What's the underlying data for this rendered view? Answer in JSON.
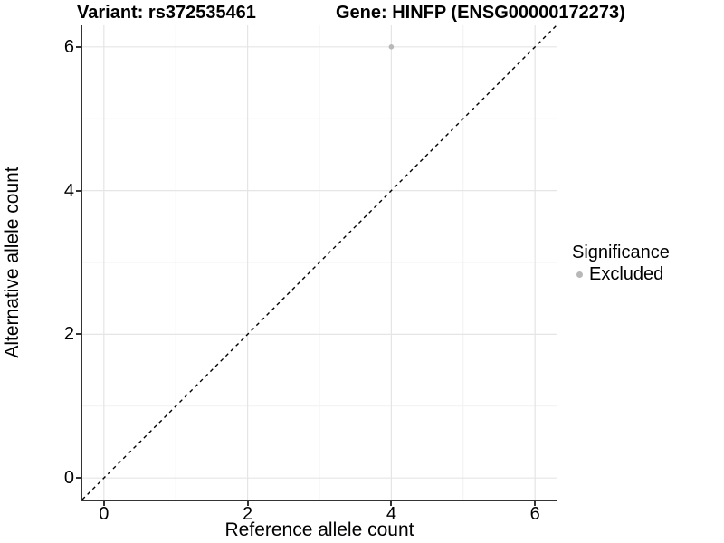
{
  "chart_data": {
    "type": "scatter",
    "title_left": "Variant: rs372535461",
    "title_right": "Gene: HINFP (ENSG00000172273)",
    "xlabel": "Reference allele count",
    "ylabel": "Alternative allele count",
    "xlim": [
      -0.3,
      6.3
    ],
    "ylim": [
      -0.3,
      6.3
    ],
    "x_ticks": [
      0,
      2,
      4,
      6
    ],
    "y_ticks": [
      0,
      2,
      4,
      6
    ],
    "minor_gridlines": [
      1,
      3,
      5
    ],
    "grid": true,
    "reference_line": {
      "slope": 1,
      "intercept": 0,
      "style": "dashed"
    },
    "series": [
      {
        "name": "Excluded",
        "color": "#b8b8b8",
        "points": [
          {
            "x": 4,
            "y": 6
          }
        ]
      }
    ],
    "legend": {
      "title": "Significance",
      "position": "right",
      "items": [
        {
          "label": "Excluded",
          "color": "#b8b8b8"
        }
      ]
    }
  },
  "colors": {
    "point": "#b8b8b8",
    "grid_major": "#e5e5e5",
    "grid_minor": "#f1f1f1",
    "axis_line": "#333333",
    "dash_line": "#000000",
    "text": "#000000"
  }
}
